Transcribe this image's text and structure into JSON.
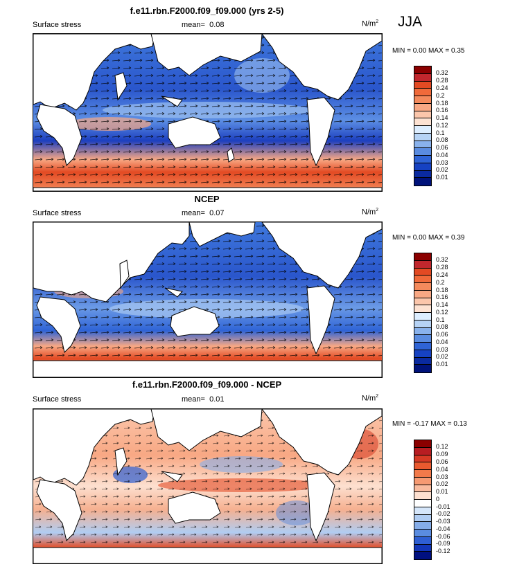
{
  "season": "JJA",
  "panels": [
    {
      "title": "f.e11.rbn.F2000.f09_f09.000 (yrs 2-5)",
      "left_label": "Surface stress",
      "mean_label": "mean=",
      "mean_value": "0.08",
      "units_base": "N/m",
      "units_sup": "2",
      "minmax": "MIN =   0.00 MAX =   0.35",
      "colorbar_labels": [
        "0.32",
        "0.28",
        "0.24",
        "0.2",
        "0.18",
        "0.16",
        "0.14",
        "0.12",
        "0.1",
        "0.08",
        "0.06",
        "0.04",
        "0.03",
        "0.02",
        "0.01"
      ],
      "colorbar_colors": [
        "#8b0000",
        "#c1272d",
        "#e34a23",
        "#f06a3a",
        "#f48a5c",
        "#f8a884",
        "#fbc6ab",
        "#fde2d2",
        "#ddeeff",
        "#b6d3f5",
        "#89b2ec",
        "#5a8ce0",
        "#2f64d6",
        "#1642c2",
        "#0a2aa0",
        "#00127a"
      ]
    },
    {
      "title": "NCEP",
      "left_label": "Surface stress",
      "mean_label": "mean=",
      "mean_value": "0.07",
      "units_base": "N/m",
      "units_sup": "2",
      "minmax": "MIN =   0.00 MAX =   0.39",
      "colorbar_labels": [
        "0.32",
        "0.28",
        "0.24",
        "0.2",
        "0.18",
        "0.16",
        "0.14",
        "0.12",
        "0.1",
        "0.08",
        "0.06",
        "0.04",
        "0.03",
        "0.02",
        "0.01"
      ],
      "colorbar_colors": [
        "#8b0000",
        "#c1272d",
        "#e34a23",
        "#f06a3a",
        "#f48a5c",
        "#f8a884",
        "#fbc6ab",
        "#fde2d2",
        "#ddeeff",
        "#b6d3f5",
        "#89b2ec",
        "#5a8ce0",
        "#2f64d6",
        "#1642c2",
        "#0a2aa0",
        "#00127a"
      ]
    },
    {
      "title": "f.e11.rbn.F2000.f09_f09.000 - NCEP",
      "left_label": "Surface stress",
      "mean_label": "mean=",
      "mean_value": "0.01",
      "units_base": "N/m",
      "units_sup": "2",
      "minmax": "MIN =  -0.17 MAX =   0.13",
      "colorbar_labels": [
        "0.12",
        "0.09",
        "0.06",
        "0.04",
        "0.03",
        "0.02",
        "0.01",
        "0",
        "-0.01",
        "-0.02",
        "-0.03",
        "-0.04",
        "-0.06",
        "-0.09",
        "-0.12"
      ],
      "colorbar_colors": [
        "#8b0000",
        "#b81d22",
        "#d63a25",
        "#ea5a2f",
        "#f27a4a",
        "#f69a72",
        "#f9bb9e",
        "#fde0d0",
        "#ffffff",
        "#d5e6fa",
        "#b0cdf3",
        "#85ade9",
        "#5a8ce0",
        "#2e5fd3",
        "#1236b8",
        "#001080"
      ]
    }
  ]
}
